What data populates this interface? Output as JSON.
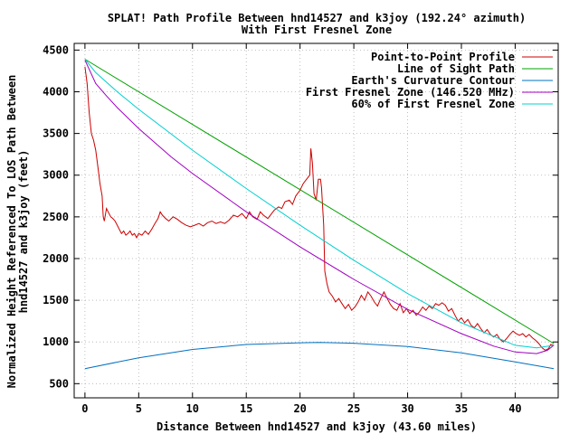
{
  "chart_data": {
    "type": "line",
    "title": "SPLAT! Path Profile Between hnd14527 and k3joy (192.24° azimuth)",
    "subtitle": "With First Fresnel Zone",
    "xlabel": "Distance Between hnd14527 and k3joy (43.60 miles)",
    "ylabel_line1": "Normalized Height Referenced To LOS Path Between",
    "ylabel_line2": "hnd14527 and k3joy (feet)",
    "xlim": [
      -1,
      44
    ],
    "ylim": [
      330,
      4580
    ],
    "x_ticks": [
      0,
      5,
      10,
      15,
      20,
      25,
      30,
      35,
      40
    ],
    "y_ticks": [
      500,
      1000,
      1500,
      2000,
      2500,
      3000,
      3500,
      4000,
      4500
    ],
    "grid": true,
    "legend_position": "top-right",
    "series": [
      {
        "name": "Point-to-Point Profile",
        "color": "#cc0000",
        "points": [
          [
            0,
            4300
          ],
          [
            0.2,
            4100
          ],
          [
            0.4,
            3750
          ],
          [
            0.6,
            3500
          ],
          [
            0.8,
            3420
          ],
          [
            1.0,
            3300
          ],
          [
            1.2,
            3100
          ],
          [
            1.4,
            2900
          ],
          [
            1.6,
            2750
          ],
          [
            1.7,
            2500
          ],
          [
            1.8,
            2450
          ],
          [
            2.0,
            2600
          ],
          [
            2.2,
            2550
          ],
          [
            2.4,
            2500
          ],
          [
            2.6,
            2480
          ],
          [
            2.8,
            2450
          ],
          [
            3.0,
            2400
          ],
          [
            3.2,
            2350
          ],
          [
            3.4,
            2300
          ],
          [
            3.6,
            2330
          ],
          [
            3.8,
            2280
          ],
          [
            4.0,
            2300
          ],
          [
            4.2,
            2330
          ],
          [
            4.4,
            2280
          ],
          [
            4.6,
            2300
          ],
          [
            4.8,
            2250
          ],
          [
            5.0,
            2300
          ],
          [
            5.3,
            2280
          ],
          [
            5.6,
            2330
          ],
          [
            5.9,
            2290
          ],
          [
            6.2,
            2350
          ],
          [
            6.5,
            2420
          ],
          [
            6.8,
            2480
          ],
          [
            7.0,
            2560
          ],
          [
            7.2,
            2520
          ],
          [
            7.5,
            2480
          ],
          [
            7.8,
            2450
          ],
          [
            8.2,
            2500
          ],
          [
            8.6,
            2470
          ],
          [
            9.0,
            2430
          ],
          [
            9.4,
            2400
          ],
          [
            9.8,
            2380
          ],
          [
            10.2,
            2400
          ],
          [
            10.6,
            2420
          ],
          [
            11.0,
            2390
          ],
          [
            11.4,
            2430
          ],
          [
            11.8,
            2450
          ],
          [
            12.2,
            2420
          ],
          [
            12.6,
            2440
          ],
          [
            13.0,
            2420
          ],
          [
            13.4,
            2460
          ],
          [
            13.8,
            2520
          ],
          [
            14.2,
            2500
          ],
          [
            14.6,
            2540
          ],
          [
            15.0,
            2480
          ],
          [
            15.3,
            2560
          ],
          [
            15.6,
            2500
          ],
          [
            16.0,
            2470
          ],
          [
            16.3,
            2560
          ],
          [
            16.6,
            2520
          ],
          [
            17.0,
            2480
          ],
          [
            17.3,
            2530
          ],
          [
            17.6,
            2580
          ],
          [
            18.0,
            2620
          ],
          [
            18.3,
            2600
          ],
          [
            18.6,
            2680
          ],
          [
            19.0,
            2700
          ],
          [
            19.3,
            2650
          ],
          [
            19.6,
            2750
          ],
          [
            20.0,
            2820
          ],
          [
            20.3,
            2900
          ],
          [
            20.6,
            2950
          ],
          [
            20.9,
            3000
          ],
          [
            21.0,
            3320
          ],
          [
            21.15,
            3150
          ],
          [
            21.3,
            2780
          ],
          [
            21.5,
            2700
          ],
          [
            21.7,
            2950
          ],
          [
            21.9,
            2950
          ],
          [
            22.0,
            2850
          ],
          [
            22.2,
            2400
          ],
          [
            22.3,
            1850
          ],
          [
            22.5,
            1700
          ],
          [
            22.7,
            1600
          ],
          [
            23.0,
            1550
          ],
          [
            23.3,
            1480
          ],
          [
            23.6,
            1520
          ],
          [
            23.9,
            1460
          ],
          [
            24.2,
            1400
          ],
          [
            24.5,
            1450
          ],
          [
            24.8,
            1380
          ],
          [
            25.1,
            1420
          ],
          [
            25.4,
            1480
          ],
          [
            25.7,
            1560
          ],
          [
            26.0,
            1500
          ],
          [
            26.3,
            1600
          ],
          [
            26.6,
            1550
          ],
          [
            26.9,
            1480
          ],
          [
            27.2,
            1430
          ],
          [
            27.5,
            1520
          ],
          [
            27.8,
            1600
          ],
          [
            28.1,
            1520
          ],
          [
            28.4,
            1450
          ],
          [
            28.7,
            1400
          ],
          [
            29.0,
            1380
          ],
          [
            29.3,
            1460
          ],
          [
            29.6,
            1350
          ],
          [
            29.9,
            1400
          ],
          [
            30.2,
            1340
          ],
          [
            30.5,
            1380
          ],
          [
            30.8,
            1320
          ],
          [
            31.1,
            1360
          ],
          [
            31.4,
            1420
          ],
          [
            31.7,
            1380
          ],
          [
            32.0,
            1430
          ],
          [
            32.3,
            1400
          ],
          [
            32.6,
            1460
          ],
          [
            32.9,
            1440
          ],
          [
            33.2,
            1470
          ],
          [
            33.5,
            1440
          ],
          [
            33.8,
            1370
          ],
          [
            34.1,
            1400
          ],
          [
            34.4,
            1320
          ],
          [
            34.7,
            1250
          ],
          [
            35.0,
            1290
          ],
          [
            35.3,
            1230
          ],
          [
            35.6,
            1270
          ],
          [
            35.9,
            1200
          ],
          [
            36.2,
            1170
          ],
          [
            36.5,
            1220
          ],
          [
            36.8,
            1160
          ],
          [
            37.1,
            1110
          ],
          [
            37.4,
            1150
          ],
          [
            37.7,
            1090
          ],
          [
            38.0,
            1060
          ],
          [
            38.3,
            1090
          ],
          [
            38.6,
            1030
          ],
          [
            38.9,
            1000
          ],
          [
            39.2,
            1040
          ],
          [
            39.5,
            1090
          ],
          [
            39.8,
            1130
          ],
          [
            40.1,
            1100
          ],
          [
            40.4,
            1080
          ],
          [
            40.7,
            1100
          ],
          [
            41.0,
            1060
          ],
          [
            41.3,
            1090
          ],
          [
            41.6,
            1050
          ],
          [
            41.9,
            1020
          ],
          [
            42.2,
            980
          ],
          [
            42.5,
            930
          ],
          [
            42.8,
            900
          ],
          [
            43.1,
            920
          ],
          [
            43.3,
            970
          ],
          [
            43.6,
            960
          ]
        ]
      },
      {
        "name": "Line of Sight Path",
        "color": "#00a000",
        "points": [
          [
            0,
            4390
          ],
          [
            43.6,
            980
          ]
        ]
      },
      {
        "name": "Earth's Curvature Contour",
        "color": "#0070c0",
        "points": [
          [
            0,
            680
          ],
          [
            5,
            810
          ],
          [
            10,
            910
          ],
          [
            15,
            970
          ],
          [
            20,
            990
          ],
          [
            21.8,
            995
          ],
          [
            25,
            985
          ],
          [
            30,
            945
          ],
          [
            35,
            870
          ],
          [
            40,
            760
          ],
          [
            43.6,
            680
          ]
        ]
      },
      {
        "name": "First Fresnel Zone (146.520 MHz)",
        "color": "#a000c0",
        "points": [
          [
            0,
            4380
          ],
          [
            1,
            4100
          ],
          [
            2,
            3950
          ],
          [
            3,
            3810
          ],
          [
            5,
            3560
          ],
          [
            8,
            3220
          ],
          [
            10,
            3020
          ],
          [
            15,
            2560
          ],
          [
            20,
            2140
          ],
          [
            25,
            1750
          ],
          [
            30,
            1390
          ],
          [
            35,
            1100
          ],
          [
            38,
            950
          ],
          [
            40,
            880
          ],
          [
            42,
            860
          ],
          [
            43,
            900
          ],
          [
            43.6,
            960
          ]
        ]
      },
      {
        "name": "60% of First Fresnel Zone",
        "color": "#00d0d0",
        "points": [
          [
            0,
            4390
          ],
          [
            1,
            4230
          ],
          [
            3,
            4000
          ],
          [
            5,
            3790
          ],
          [
            10,
            3300
          ],
          [
            15,
            2840
          ],
          [
            20,
            2400
          ],
          [
            25,
            1980
          ],
          [
            30,
            1580
          ],
          [
            35,
            1230
          ],
          [
            40,
            960
          ],
          [
            42,
            930
          ],
          [
            43.6,
            960
          ]
        ]
      }
    ]
  }
}
